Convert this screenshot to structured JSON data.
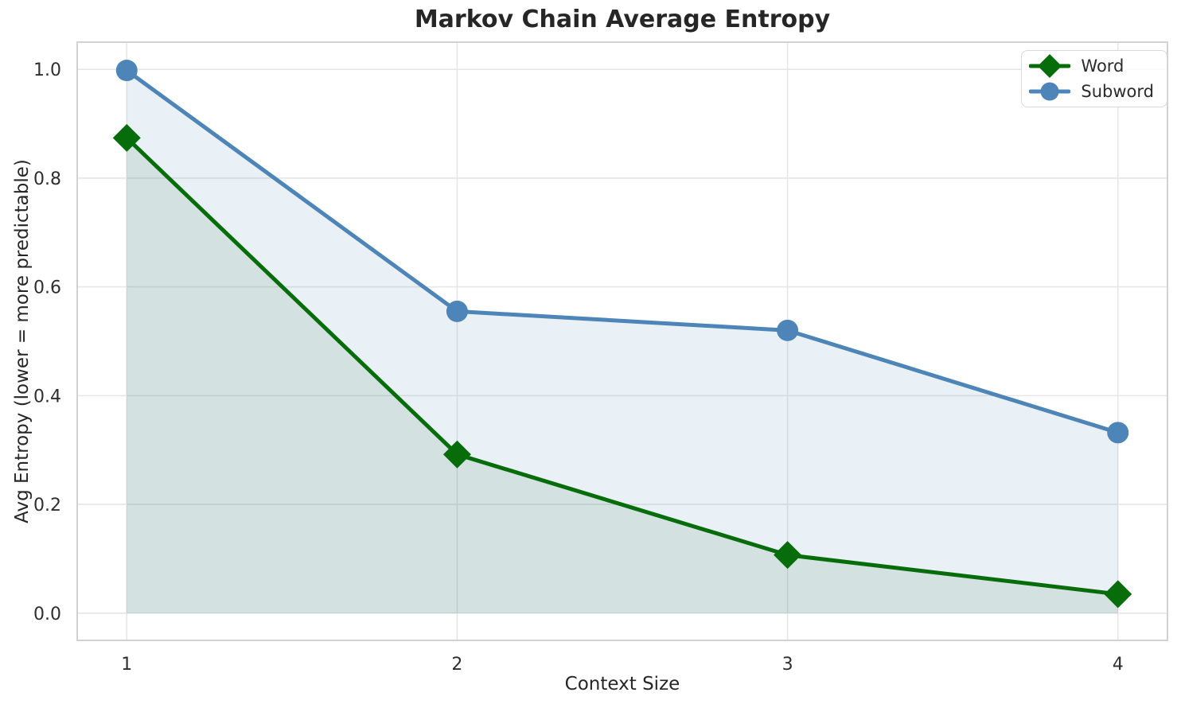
{
  "figure": {
    "background": "#ffffff"
  },
  "chart_data": {
    "type": "line",
    "title": "Markov Chain Average Entropy",
    "xlabel": "Context Size",
    "ylabel": "Avg Entropy (lower = more predictable)",
    "x": [
      1,
      2,
      3,
      4
    ],
    "x_tick_labels": [
      "1",
      "2",
      "3",
      "4"
    ],
    "y_ticks": [
      0.0,
      0.2,
      0.4,
      0.6,
      0.8,
      1.0
    ],
    "y_tick_labels": [
      "0.0",
      "0.2",
      "0.4",
      "0.6",
      "0.8",
      "1.0"
    ],
    "xlim": [
      0.85,
      4.15
    ],
    "ylim": [
      -0.05,
      1.05
    ],
    "grid": true,
    "legend_position": "upper right",
    "series": [
      {
        "name": "Word",
        "marker": "diamond",
        "color": "#076d0a",
        "line_width": 5,
        "fill_to_zero": true,
        "fill_alpha": 0.1,
        "values": [
          0.874,
          0.292,
          0.107,
          0.035
        ]
      },
      {
        "name": "Subword",
        "marker": "circle",
        "color": "#4d85b8",
        "line_width": 5,
        "fill_to_zero": true,
        "fill_alpha": 0.12,
        "values": [
          0.998,
          0.555,
          0.52,
          0.332
        ]
      }
    ],
    "style": {
      "grid_color": "#e6e6e6",
      "spine_color": "#d2d2d2",
      "title_color": "#262626",
      "tick_color": "#2f2f2f",
      "legend_border": "#d9d9d9"
    }
  }
}
